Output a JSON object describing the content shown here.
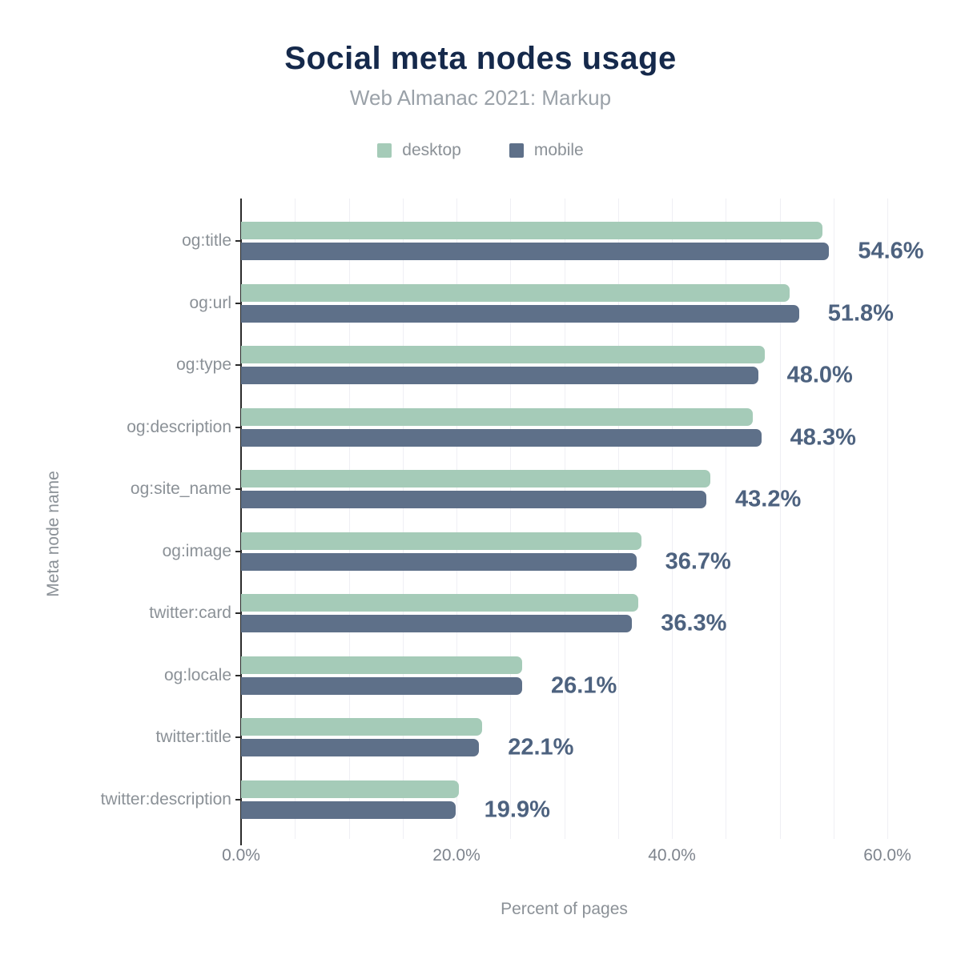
{
  "header": {
    "title": "Social meta nodes usage",
    "subtitle": "Web Almanac 2021: Markup"
  },
  "legend": [
    {
      "label": "desktop",
      "color": "#a5cbb8"
    },
    {
      "label": "mobile",
      "color": "#5e7089"
    }
  ],
  "colors": {
    "title": "#15294b",
    "subtitle": "#9aa1a8",
    "axis_text": "#8b9197",
    "tick_text": "#7e848d",
    "value_label": "#4d627f",
    "desktop_bar": "#a5cbb8",
    "mobile_bar": "#5e7089",
    "axis_line": "#2b2b2b",
    "gridline": "#efeff4"
  },
  "chart_data": {
    "type": "bar",
    "orientation": "horizontal",
    "title": "Social meta nodes usage",
    "subtitle": "Web Almanac 2021: Markup",
    "xlabel": "Percent of pages",
    "ylabel": "Meta node name",
    "xlim": [
      0,
      63
    ],
    "grid": "vertical, minor line every 5%",
    "legend_position": "top-center",
    "categories": [
      "og:title",
      "og:url",
      "og:type",
      "og:description",
      "og:site_name",
      "og:image",
      "twitter:card",
      "og:locale",
      "twitter:title",
      "twitter:description"
    ],
    "series": [
      {
        "name": "desktop",
        "values": [
          54.0,
          50.9,
          48.6,
          47.5,
          43.6,
          37.2,
          36.9,
          26.1,
          22.4,
          20.2
        ]
      },
      {
        "name": "mobile",
        "values": [
          54.6,
          51.8,
          48.0,
          48.3,
          43.2,
          36.7,
          36.3,
          26.1,
          22.1,
          19.9
        ]
      }
    ],
    "bar_labels": [
      "54.6%",
      "51.8%",
      "48.0%",
      "48.3%",
      "43.2%",
      "36.7%",
      "36.3%",
      "26.1%",
      "22.1%",
      "19.9%"
    ],
    "x_ticks": [
      {
        "value": 0,
        "label": "0.0%"
      },
      {
        "value": 20,
        "label": "20.0%"
      },
      {
        "value": 40,
        "label": "40.0%"
      },
      {
        "value": 60,
        "label": "60.0%"
      }
    ]
  }
}
